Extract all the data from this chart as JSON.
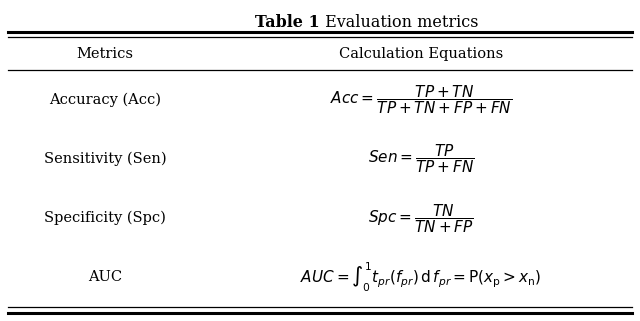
{
  "title_bold": "Table 1",
  "title_regular": " Evaluation metrics",
  "col1_header": "Metrics",
  "col2_header": "Calculation Equations",
  "metrics": [
    "Accuracy (Acc)",
    "Sensitivity (Sen)",
    "Specificity (Spc)",
    "AUC"
  ],
  "background_color": "#ffffff",
  "text_color": "#000000",
  "title_fontsize": 11.5,
  "header_fontsize": 10.5,
  "metric_fontsize": 10.5,
  "eq_fontsize": 11
}
